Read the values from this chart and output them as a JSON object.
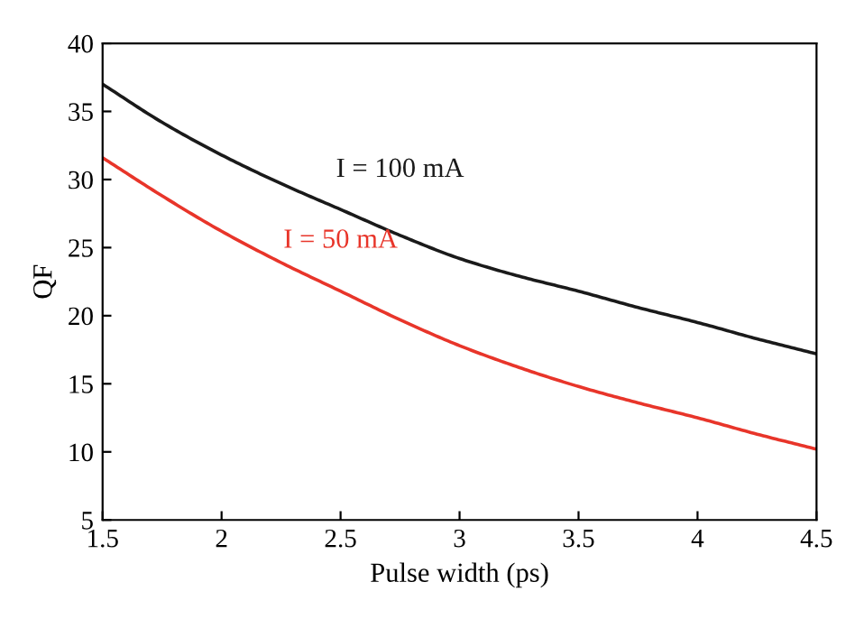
{
  "chart_data": {
    "type": "line",
    "xlabel": "Pulse width (ps)",
    "ylabel": "QF",
    "x": [
      1.5,
      1.75,
      2,
      2.25,
      2.5,
      2.75,
      3,
      3.25,
      3.5,
      3.75,
      4,
      4.25,
      4.5
    ],
    "series": [
      {
        "name": "I = 100 mA",
        "color": "#1a1a1a",
        "values": [
          37,
          34.2,
          31.8,
          29.7,
          27.8,
          25.9,
          24.2,
          22.9,
          21.8,
          20.6,
          19.5,
          18.3,
          17.2
        ]
      },
      {
        "name": "I = 50 mA",
        "color": "#e8352a",
        "values": [
          31.6,
          28.8,
          26.2,
          23.9,
          21.8,
          19.7,
          17.8,
          16.2,
          14.8,
          13.6,
          12.5,
          11.3,
          10.2
        ]
      }
    ],
    "xlim": [
      1.5,
      4.5
    ],
    "xticks": [
      1.5,
      2,
      2.5,
      3,
      3.5,
      4,
      4.5
    ],
    "ylim": [
      5,
      40
    ],
    "yticks": [
      5,
      10,
      15,
      20,
      25,
      30,
      35,
      40
    ],
    "grid": false,
    "legend": false,
    "marker": "none",
    "line_style": "solid"
  }
}
